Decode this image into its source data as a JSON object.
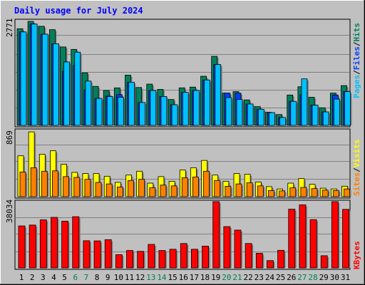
{
  "title": "Daily usage for July 2024",
  "legend": {
    "pages": "Pages",
    "files": "Files",
    "hits": "Hits",
    "sites": "Sites",
    "visits": "Visits",
    "kbytes": "KBytes",
    "separator": "/"
  },
  "colors": {
    "background": "#C0C0C0",
    "title": "#0000FF",
    "hits": "#00805C",
    "files": "#0040FF",
    "pages": "#00C0FF",
    "visits": "#FFFF00",
    "sites": "#FF8000",
    "kbytes": "#FF0000",
    "weekday_label": "#000000",
    "weekend_label": "#00805C"
  },
  "chart_data": [
    {
      "type": "bar",
      "panel": "hits-files-pages",
      "ymax_label": "2771",
      "ylim": [
        0,
        2771
      ],
      "categories": [
        "1",
        "2",
        "3",
        "4",
        "5",
        "6",
        "7",
        "8",
        "9",
        "10",
        "11",
        "12",
        "13",
        "14",
        "15",
        "16",
        "17",
        "18",
        "19",
        "20",
        "21",
        "22",
        "23",
        "24",
        "25",
        "26",
        "27",
        "28",
        "29",
        "30",
        "31"
      ],
      "weekend": [
        "6",
        "7",
        "13",
        "14",
        "20",
        "21",
        "27",
        "28"
      ],
      "series": [
        {
          "name": "Hits",
          "values": [
            2575,
            2860,
            2640,
            2550,
            2090,
            2025,
            1400,
            1040,
            930,
            1000,
            1340,
            1010,
            1100,
            960,
            690,
            1000,
            1020,
            1310,
            1840,
            860,
            900,
            680,
            500,
            350,
            290,
            810,
            1030,
            750,
            470,
            860,
            1060
          ]
        },
        {
          "name": "Files",
          "values": [
            2490,
            2700,
            2430,
            2175,
            1440,
            1590,
            940,
            720,
            780,
            820,
            1150,
            610,
            930,
            770,
            550,
            880,
            930,
            1210,
            1620,
            860,
            860,
            570,
            430,
            340,
            210,
            640,
            820,
            540,
            360,
            810,
            900
          ]
        },
        {
          "name": "Pages",
          "values": [
            2490,
            2700,
            2430,
            2175,
            1690,
            1950,
            1180,
            720,
            770,
            750,
            1150,
            610,
            930,
            770,
            550,
            880,
            930,
            1210,
            1620,
            740,
            690,
            570,
            430,
            340,
            210,
            640,
            1240,
            540,
            360,
            700,
            900
          ]
        }
      ]
    },
    {
      "type": "bar",
      "panel": "visits-sites",
      "ymax_label": "869",
      "ylim": [
        0,
        869
      ],
      "categories": [
        "1",
        "2",
        "3",
        "4",
        "5",
        "6",
        "7",
        "8",
        "9",
        "10",
        "11",
        "12",
        "13",
        "14",
        "15",
        "16",
        "17",
        "18",
        "19",
        "20",
        "21",
        "22",
        "23",
        "24",
        "25",
        "26",
        "27",
        "28",
        "29",
        "30",
        "31"
      ],
      "series": [
        {
          "name": "Visits",
          "values": [
            530,
            840,
            550,
            595,
            420,
            315,
            300,
            300,
            265,
            185,
            280,
            330,
            175,
            260,
            200,
            345,
            375,
            470,
            280,
            200,
            300,
            290,
            190,
            130,
            100,
            175,
            235,
            160,
            110,
            100,
            135
          ]
        },
        {
          "name": "Sites",
          "values": [
            320,
            375,
            330,
            335,
            260,
            250,
            225,
            185,
            165,
            125,
            210,
            225,
            115,
            150,
            140,
            245,
            255,
            330,
            210,
            135,
            165,
            180,
            140,
            80,
            75,
            115,
            120,
            105,
            85,
            80,
            100
          ]
        }
      ]
    },
    {
      "type": "bar",
      "panel": "kbytes",
      "ymax_label": "38034",
      "ylim": [
        0,
        38034
      ],
      "categories": [
        "1",
        "2",
        "3",
        "4",
        "5",
        "6",
        "7",
        "8",
        "9",
        "10",
        "11",
        "12",
        "13",
        "14",
        "15",
        "16",
        "17",
        "18",
        "19",
        "20",
        "21",
        "22",
        "23",
        "24",
        "25",
        "26",
        "27",
        "28",
        "29",
        "30",
        "31"
      ],
      "series": [
        {
          "name": "KBytes",
          "values": [
            24100,
            24600,
            27600,
            29000,
            26800,
            29400,
            15600,
            15500,
            16200,
            7600,
            10000,
            9500,
            13500,
            10000,
            10700,
            14000,
            10700,
            12500,
            38100,
            23700,
            21700,
            14000,
            8400,
            4200,
            10100,
            33700,
            36200,
            27700,
            7000,
            38100,
            33600
          ]
        }
      ]
    }
  ]
}
